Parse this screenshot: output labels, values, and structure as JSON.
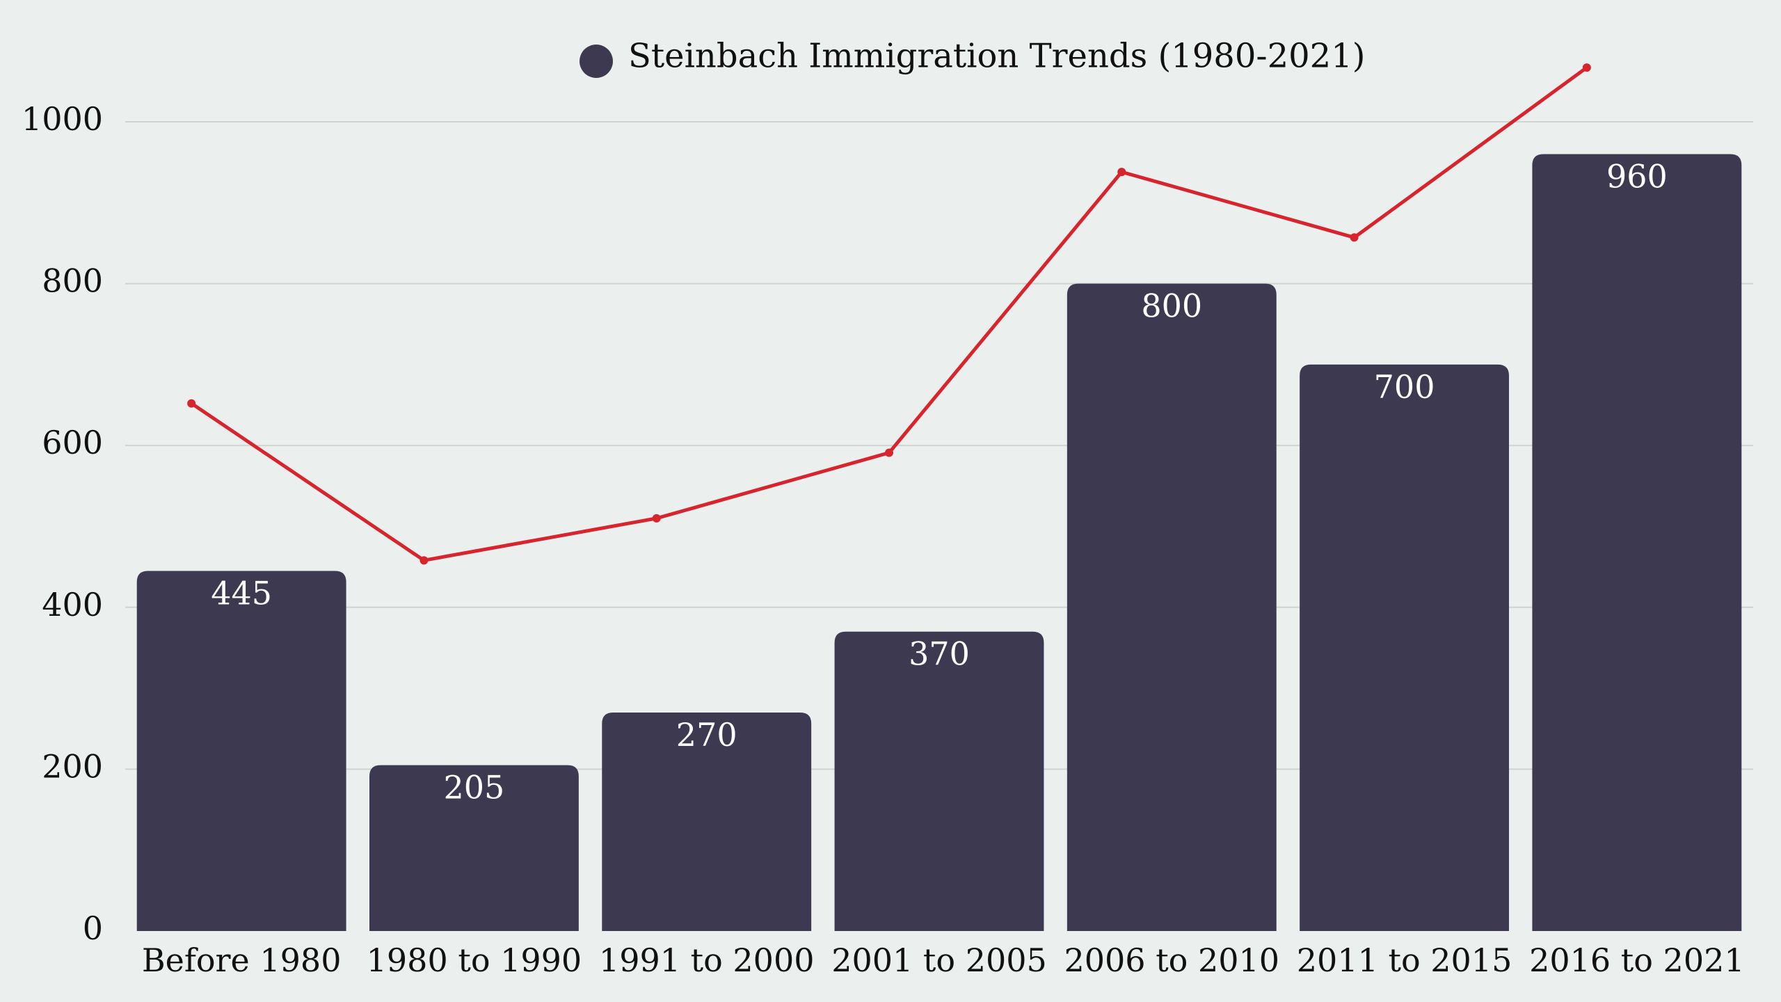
{
  "chart_data": {
    "type": "bar",
    "title": "",
    "xlabel": "",
    "ylabel": "",
    "ylim": [
      0,
      1000
    ],
    "yticks": [
      0,
      200,
      400,
      600,
      800,
      1000
    ],
    "grid": true,
    "legend_position": "top-center",
    "categories": [
      "Before 1980",
      "1980 to 1990",
      "1991 to 2000",
      "2001 to 2005",
      "2006 to 2010",
      "2011 to 2015",
      "2016 to 2021"
    ],
    "series": [
      {
        "name": "Steinbach Immigration Trends (1980-2021)",
        "type": "bar",
        "color": "#3d3950",
        "values": [
          445,
          205,
          270,
          370,
          800,
          700,
          960
        ],
        "show_labels": true
      },
      {
        "type": "line",
        "color": "#d8252d",
        "values": [
          652,
          458,
          510,
          591,
          938,
          857,
          1067
        ],
        "show_labels": false
      }
    ]
  }
}
